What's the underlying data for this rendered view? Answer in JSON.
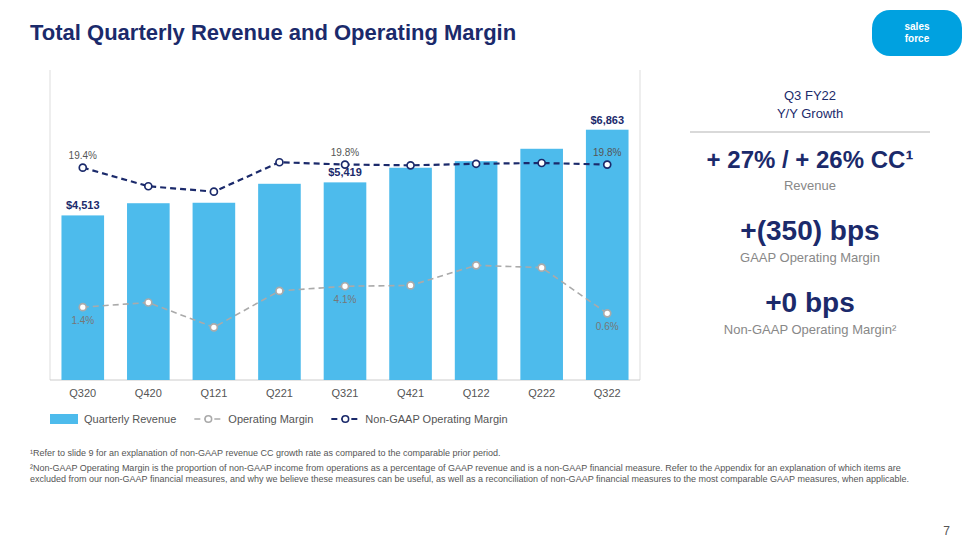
{
  "chart_data": {
    "type": "bar",
    "title": "Total Quarterly Revenue and Operating Margin",
    "categories": [
      "Q320",
      "Q420",
      "Q121",
      "Q221",
      "Q321",
      "Q421",
      "Q122",
      "Q222",
      "Q322"
    ],
    "series": [
      {
        "name": "Quarterly Revenue",
        "type": "bar",
        "color": "#4DBBEC",
        "values": [
          4513,
          4847,
          4860,
          5380,
          5419,
          5820,
          6000,
          6340,
          6863
        ],
        "value_labels": [
          "$4,513",
          null,
          null,
          null,
          "$5,419",
          null,
          null,
          null,
          "$6,863"
        ]
      },
      {
        "name": "Operating Margin",
        "type": "line",
        "axis": "y2",
        "color": "#AAAAAA",
        "line_style": "dashed",
        "marker": "circle",
        "values": [
          1.4,
          2.0,
          -1.2,
          3.5,
          4.1,
          4.2,
          6.8,
          6.5,
          0.6
        ],
        "value_labels": [
          "1.4%",
          null,
          null,
          null,
          "4.1%",
          null,
          null,
          null,
          "0.6%"
        ]
      },
      {
        "name": "Non-GAAP Operating Margin",
        "type": "line",
        "axis": "y2",
        "color": "#1B2A6B",
        "line_style": "dashed",
        "marker": "circle",
        "values": [
          19.4,
          17.0,
          16.3,
          20.1,
          19.8,
          19.7,
          19.9,
          20.0,
          19.8
        ],
        "value_labels": [
          "19.4%",
          null,
          null,
          null,
          "19.8%",
          null,
          null,
          null,
          "19.8%"
        ]
      }
    ],
    "ylim": [
      0,
      8500
    ],
    "y2lim": [
      -8,
      32
    ],
    "tick_labels": "x",
    "grid": false,
    "legend": "lower left",
    "data_labels": true,
    "annotations": [
      "Q3 FY22",
      "Y/Y Growth",
      "+ 27% / + 26% CC¹",
      "Revenue",
      "+(350) bps",
      "GAAP Operating Margin",
      "+0 bps",
      "Non-GAAP Operating Margin²",
      "sales\nforce",
      "¹Refer to slide 9 for an explanation of non-GAAP revenue CC growth rate as compared to the comparable prior period.",
      "²Non-GAAP Operating Margin is the proportion of non-GAAP income from operations as a percentage of GAAP revenue and is a non-GAAP financial measure. Refer to the Appendix for an explanation of which items are excluded from our non-GAAP financial measures, and why we believe these measures can be useful, as well as a reconciliation of non-GAAP financial measures to the most comparable GAAP measures, when applicable.",
      "7"
    ]
  }
}
